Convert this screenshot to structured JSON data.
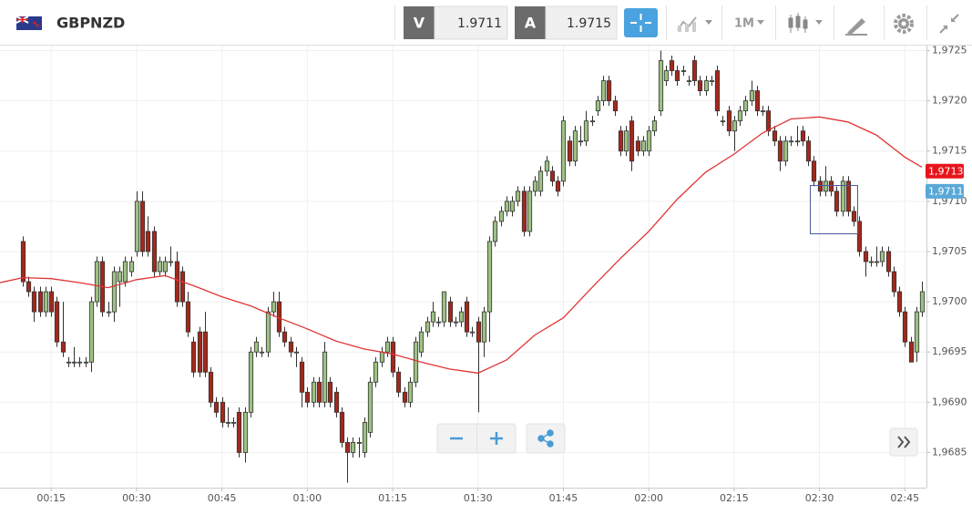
{
  "toolbar": {
    "symbol": "GBPNZD",
    "bid_label": "V",
    "bid": 1.9711,
    "ask_label": "A",
    "ask": 1.9715,
    "timeframe": "1M"
  },
  "chart_data": {
    "type": "candlestick",
    "up_color": "#9dc183",
    "down_color": "#a3281c",
    "grid": true,
    "ylim": [
      1.96815,
      1.97255
    ],
    "yticks": [
      {
        "value": 1.9725,
        "label": "1,9725"
      },
      {
        "value": 1.972,
        "label": "1,9720"
      },
      {
        "value": 1.9715,
        "label": "1,9715"
      },
      {
        "value": 1.971,
        "label": "1,9710"
      },
      {
        "value": 1.9705,
        "label": "1,9705"
      },
      {
        "value": 1.97,
        "label": "1,9700"
      },
      {
        "value": 1.9695,
        "label": "1,9695"
      },
      {
        "value": 1.969,
        "label": "1,9690"
      },
      {
        "value": 1.9685,
        "label": "1,9685"
      }
    ],
    "xlim": [
      -4,
      158.8
    ],
    "xticks": [
      {
        "value": 5,
        "label": "00:15"
      },
      {
        "value": 20,
        "label": "00:30"
      },
      {
        "value": 35,
        "label": "00:45"
      },
      {
        "value": 50,
        "label": "01:00"
      },
      {
        "value": 65,
        "label": "01:15"
      },
      {
        "value": 80,
        "label": "01:30"
      },
      {
        "value": 95,
        "label": "01:45"
      },
      {
        "value": 110,
        "label": "02:00"
      },
      {
        "value": 125,
        "label": "02:15"
      },
      {
        "value": 140,
        "label": "02:30"
      },
      {
        "value": 155,
        "label": "02:45"
      }
    ],
    "candles": [
      [
        1.9706,
        1.97065,
        1.97015,
        1.9702
      ],
      [
        1.9702,
        1.97025,
        1.97005,
        1.9701
      ],
      [
        1.9701,
        1.97015,
        1.9698,
        1.9699
      ],
      [
        1.9701,
        1.97015,
        1.96985,
        1.9699
      ],
      [
        1.9699,
        1.97015,
        1.96985,
        1.9701
      ],
      [
        1.9701,
        1.97015,
        1.96985,
        1.9699
      ],
      [
        1.97,
        1.97005,
        1.96955,
        1.9696
      ],
      [
        1.9696,
        1.97,
        1.96945,
        1.9695
      ],
      [
        1.9694,
        1.96945,
        1.96935,
        1.9694
      ],
      [
        1.9694,
        1.96955,
        1.96935,
        1.9694
      ],
      [
        1.9694,
        1.96945,
        1.96935,
        1.9694
      ],
      [
        1.9694,
        1.96945,
        1.96935,
        1.9694
      ],
      [
        1.9694,
        1.97005,
        1.9693,
        1.97
      ],
      [
        1.97,
        1.97045,
        1.96995,
        1.9704
      ],
      [
        1.9704,
        1.97045,
        1.96985,
        1.9699
      ],
      [
        1.9699,
        1.97,
        1.96985,
        1.9699
      ],
      [
        1.9699,
        1.97035,
        1.9698,
        1.9703
      ],
      [
        1.9702,
        1.97035,
        1.96995,
        1.9703
      ],
      [
        1.9702,
        1.97045,
        1.97015,
        1.9704
      ],
      [
        1.9703,
        1.97045,
        1.97025,
        1.9704
      ],
      [
        1.9705,
        1.9711,
        1.97045,
        1.971
      ],
      [
        1.971,
        1.9711,
        1.97045,
        1.9705
      ],
      [
        1.9707,
        1.97085,
        1.97045,
        1.9705
      ],
      [
        1.9707,
        1.97075,
        1.97025,
        1.9703
      ],
      [
        1.9703,
        1.97045,
        1.97025,
        1.9704
      ],
      [
        1.9703,
        1.97045,
        1.97025,
        1.9704
      ],
      [
        1.9704,
        1.97055,
        1.97035,
        1.9704
      ],
      [
        1.9704,
        1.9705,
        1.96995,
        1.97
      ],
      [
        1.9703,
        1.97035,
        1.96995,
        1.97
      ],
      [
        1.97,
        1.9701,
        1.96965,
        1.9697
      ],
      [
        1.9696,
        1.96965,
        1.96925,
        1.9693
      ],
      [
        1.9697,
        1.96975,
        1.96925,
        1.9693
      ],
      [
        1.9697,
        1.9699,
        1.96925,
        1.9693
      ],
      [
        1.9693,
        1.96935,
        1.96895,
        1.969
      ],
      [
        1.969,
        1.96905,
        1.96885,
        1.9689
      ],
      [
        1.969,
        1.96905,
        1.96875,
        1.9688
      ],
      [
        1.9688,
        1.96895,
        1.96875,
        1.9688
      ],
      [
        1.9688,
        1.96885,
        1.96875,
        1.9688
      ],
      [
        1.9689,
        1.96895,
        1.96845,
        1.9685
      ],
      [
        1.9685,
        1.96895,
        1.9684,
        1.9689
      ],
      [
        1.9689,
        1.96955,
        1.96885,
        1.9695
      ],
      [
        1.9695,
        1.96965,
        1.96945,
        1.9696
      ],
      [
        1.9695,
        1.96955,
        1.96945,
        1.9695
      ],
      [
        1.9695,
        1.96995,
        1.96945,
        1.9699
      ],
      [
        1.9699,
        1.9701,
        1.96985,
        1.97
      ],
      [
        1.97,
        1.9701,
        1.96965,
        1.9697
      ],
      [
        1.9697,
        1.96975,
        1.96955,
        1.9696
      ],
      [
        1.9696,
        1.96965,
        1.96945,
        1.9695
      ],
      [
        1.9695,
        1.96955,
        1.96935,
        1.9695
      ],
      [
        1.9694,
        1.96945,
        1.96895,
        1.9691
      ],
      [
        1.9691,
        1.96915,
        1.96895,
        1.969
      ],
      [
        1.969,
        1.96925,
        1.96895,
        1.9692
      ],
      [
        1.9692,
        1.96925,
        1.96895,
        1.969
      ],
      [
        1.969,
        1.9696,
        1.96895,
        1.9695
      ],
      [
        1.9692,
        1.96925,
        1.96895,
        1.969
      ],
      [
        1.9691,
        1.96915,
        1.96885,
        1.9689
      ],
      [
        1.9689,
        1.96895,
        1.96855,
        1.9686
      ],
      [
        1.9686,
        1.96865,
        1.9682,
        1.9685
      ],
      [
        1.9685,
        1.96865,
        1.96845,
        1.9686
      ],
      [
        1.9686,
        1.96865,
        1.96845,
        1.9686
      ],
      [
        1.9685,
        1.96885,
        1.96845,
        1.9688
      ],
      [
        1.9687,
        1.96925,
        1.96865,
        1.9692
      ],
      [
        1.9692,
        1.96945,
        1.96915,
        1.9694
      ],
      [
        1.9694,
        1.96955,
        1.96935,
        1.9695
      ],
      [
        1.9695,
        1.96965,
        1.96945,
        1.9696
      ],
      [
        1.9696,
        1.96965,
        1.96925,
        1.9693
      ],
      [
        1.9693,
        1.96935,
        1.96905,
        1.9691
      ],
      [
        1.9691,
        1.96915,
        1.96895,
        1.969
      ],
      [
        1.969,
        1.96925,
        1.96895,
        1.9692
      ],
      [
        1.9692,
        1.96965,
        1.96915,
        1.9696
      ],
      [
        1.9695,
        1.96975,
        1.96945,
        1.9697
      ],
      [
        1.9697,
        1.96985,
        1.96965,
        1.9698
      ],
      [
        1.9698,
        1.97,
        1.96975,
        1.9699
      ],
      [
        1.9698,
        1.96985,
        1.96975,
        1.9698
      ],
      [
        1.9698,
        1.9701,
        1.96975,
        1.9701
      ],
      [
        1.97,
        1.97005,
        1.96975,
        1.9698
      ],
      [
        1.9698,
        1.96985,
        1.96975,
        1.9698
      ],
      [
        1.9698,
        1.96995,
        1.96975,
        1.9699
      ],
      [
        1.97,
        1.97005,
        1.96965,
        1.9697
      ],
      [
        1.9697,
        1.96975,
        1.96965,
        1.9697
      ],
      [
        1.9698,
        1.96985,
        1.9689,
        1.9696
      ],
      [
        1.9696,
        1.96995,
        1.96945,
        1.9699
      ],
      [
        1.9699,
        1.97065,
        1.9696,
        1.9706
      ],
      [
        1.9706,
        1.97085,
        1.97055,
        1.9708
      ],
      [
        1.9708,
        1.97095,
        1.97075,
        1.9709
      ],
      [
        1.9709,
        1.97105,
        1.97085,
        1.971
      ],
      [
        1.9709,
        1.97105,
        1.97085,
        1.971
      ],
      [
        1.971,
        1.97115,
        1.97095,
        1.9711
      ],
      [
        1.9711,
        1.97115,
        1.97065,
        1.9707
      ],
      [
        1.9707,
        1.97115,
        1.97065,
        1.9711
      ],
      [
        1.9711,
        1.97125,
        1.97105,
        1.9712
      ],
      [
        1.9711,
        1.97135,
        1.97105,
        1.9713
      ],
      [
        1.9713,
        1.97145,
        1.97125,
        1.9714
      ],
      [
        1.9713,
        1.97135,
        1.97115,
        1.9712
      ],
      [
        1.9712,
        1.97125,
        1.97105,
        1.9711
      ],
      [
        1.9712,
        1.97185,
        1.97115,
        1.9718
      ],
      [
        1.9716,
        1.97165,
        1.97135,
        1.9714
      ],
      [
        1.9714,
        1.97175,
        1.97135,
        1.9717
      ],
      [
        1.9716,
        1.97175,
        1.97155,
        1.9716
      ],
      [
        1.9716,
        1.9719,
        1.97155,
        1.9718
      ],
      [
        1.9718,
        1.97185,
        1.97175,
        1.9718
      ],
      [
        1.9719,
        1.97205,
        1.97185,
        1.972
      ],
      [
        1.972,
        1.97225,
        1.97195,
        1.9722
      ],
      [
        1.9722,
        1.97225,
        1.97195,
        1.972
      ],
      [
        1.972,
        1.97205,
        1.97185,
        1.9719
      ],
      [
        1.9717,
        1.97175,
        1.97145,
        1.9715
      ],
      [
        1.9715,
        1.97175,
        1.97145,
        1.9717
      ],
      [
        1.9718,
        1.97185,
        1.9713,
        1.9714
      ],
      [
        1.9716,
        1.97165,
        1.97145,
        1.9715
      ],
      [
        1.9715,
        1.97165,
        1.97145,
        1.9716
      ],
      [
        1.9715,
        1.97175,
        1.97145,
        1.9717
      ],
      [
        1.9717,
        1.97185,
        1.97165,
        1.9718
      ],
      [
        1.9719,
        1.9725,
        1.97185,
        1.9724
      ],
      [
        1.9722,
        1.97235,
        1.97215,
        1.9723
      ],
      [
        1.9724,
        1.97245,
        1.97225,
        1.9723
      ],
      [
        1.9723,
        1.97235,
        1.97215,
        1.9722
      ],
      [
        1.9723,
        1.97235,
        1.97225,
        1.9723
      ],
      [
        1.9722,
        1.97225,
        1.97215,
        1.9722
      ],
      [
        1.9724,
        1.97245,
        1.97215,
        1.9722
      ],
      [
        1.9722,
        1.97225,
        1.97205,
        1.9721
      ],
      [
        1.9721,
        1.97225,
        1.97205,
        1.9722
      ],
      [
        1.9722,
        1.97225,
        1.97215,
        1.9722
      ],
      [
        1.9723,
        1.97235,
        1.97185,
        1.9719
      ],
      [
        1.9718,
        1.97185,
        1.97175,
        1.9718
      ],
      [
        1.9719,
        1.97195,
        1.97165,
        1.9717
      ],
      [
        1.9717,
        1.97185,
        1.9715,
        1.9718
      ],
      [
        1.9718,
        1.97195,
        1.97175,
        1.9719
      ],
      [
        1.9719,
        1.97205,
        1.97185,
        1.972
      ],
      [
        1.972,
        1.9722,
        1.97195,
        1.9721
      ],
      [
        1.9721,
        1.97215,
        1.97185,
        1.9719
      ],
      [
        1.9719,
        1.97195,
        1.97185,
        1.9719
      ],
      [
        1.9719,
        1.97195,
        1.97165,
        1.9717
      ],
      [
        1.9717,
        1.97175,
        1.97155,
        1.9716
      ],
      [
        1.9716,
        1.97165,
        1.9713,
        1.9714
      ],
      [
        1.9714,
        1.97165,
        1.97135,
        1.9716
      ],
      [
        1.9716,
        1.97165,
        1.97155,
        1.9716
      ],
      [
        1.9716,
        1.97175,
        1.97155,
        1.9716
      ],
      [
        1.9717,
        1.97175,
        1.97155,
        1.9716
      ],
      [
        1.9716,
        1.97165,
        1.97135,
        1.9714
      ],
      [
        1.9714,
        1.97145,
        1.97115,
        1.9712
      ],
      [
        1.9712,
        1.97125,
        1.97105,
        1.9711
      ],
      [
        1.9711,
        1.97135,
        1.97105,
        1.9712
      ],
      [
        1.9712,
        1.97125,
        1.97105,
        1.9711
      ],
      [
        1.9711,
        1.97115,
        1.97085,
        1.9709
      ],
      [
        1.9709,
        1.97125,
        1.97085,
        1.9712
      ],
      [
        1.9712,
        1.97125,
        1.97085,
        1.9709
      ],
      [
        1.9709,
        1.97095,
        1.97075,
        1.9708
      ],
      [
        1.9708,
        1.97085,
        1.97045,
        1.9705
      ],
      [
        1.9705,
        1.97055,
        1.97025,
        1.9704
      ],
      [
        1.9704,
        1.97045,
        1.97035,
        1.9704
      ],
      [
        1.9704,
        1.97055,
        1.97035,
        1.9704
      ],
      [
        1.9704,
        1.97055,
        1.97035,
        1.9705
      ],
      [
        1.9705,
        1.97055,
        1.97025,
        1.9703
      ],
      [
        1.9703,
        1.97035,
        1.97005,
        1.9701
      ],
      [
        1.9701,
        1.97015,
        1.96985,
        1.9699
      ],
      [
        1.9699,
        1.96995,
        1.96955,
        1.9696
      ],
      [
        1.9696,
        1.96965,
        1.9694,
        1.9694
      ],
      [
        1.9695,
        1.96995,
        1.9694,
        1.9699
      ],
      [
        1.9699,
        1.9702,
        1.96985,
        1.9701
      ]
    ],
    "ma": {
      "color": "#e03535",
      "x": [
        -4,
        0,
        5,
        10,
        15,
        20,
        25,
        30,
        35,
        40,
        45,
        50,
        55,
        60,
        65,
        70,
        75,
        80,
        85,
        90,
        95,
        100,
        105,
        110,
        115,
        120,
        125,
        130,
        135,
        140,
        145,
        150,
        155,
        158
      ],
      "values": [
        1.97019,
        1.97024,
        1.97023,
        1.97019,
        1.97014,
        1.97022,
        1.97026,
        1.97016,
        1.97005,
        1.96996,
        1.96984,
        1.96973,
        1.96961,
        1.96953,
        1.96948,
        1.9694,
        1.96933,
        1.96929,
        1.96942,
        1.96967,
        1.96984,
        1.97014,
        1.97043,
        1.9707,
        1.97102,
        1.97129,
        1.97147,
        1.97168,
        1.97182,
        1.97184,
        1.97179,
        1.97166,
        1.97144,
        1.97134
      ]
    },
    "price_tags": [
      {
        "value": 1.9713,
        "label": "1,9713",
        "color": "#e8141b"
      },
      {
        "value": 1.9711,
        "label": "1,9711",
        "color": "#5aa8d8"
      }
    ]
  }
}
